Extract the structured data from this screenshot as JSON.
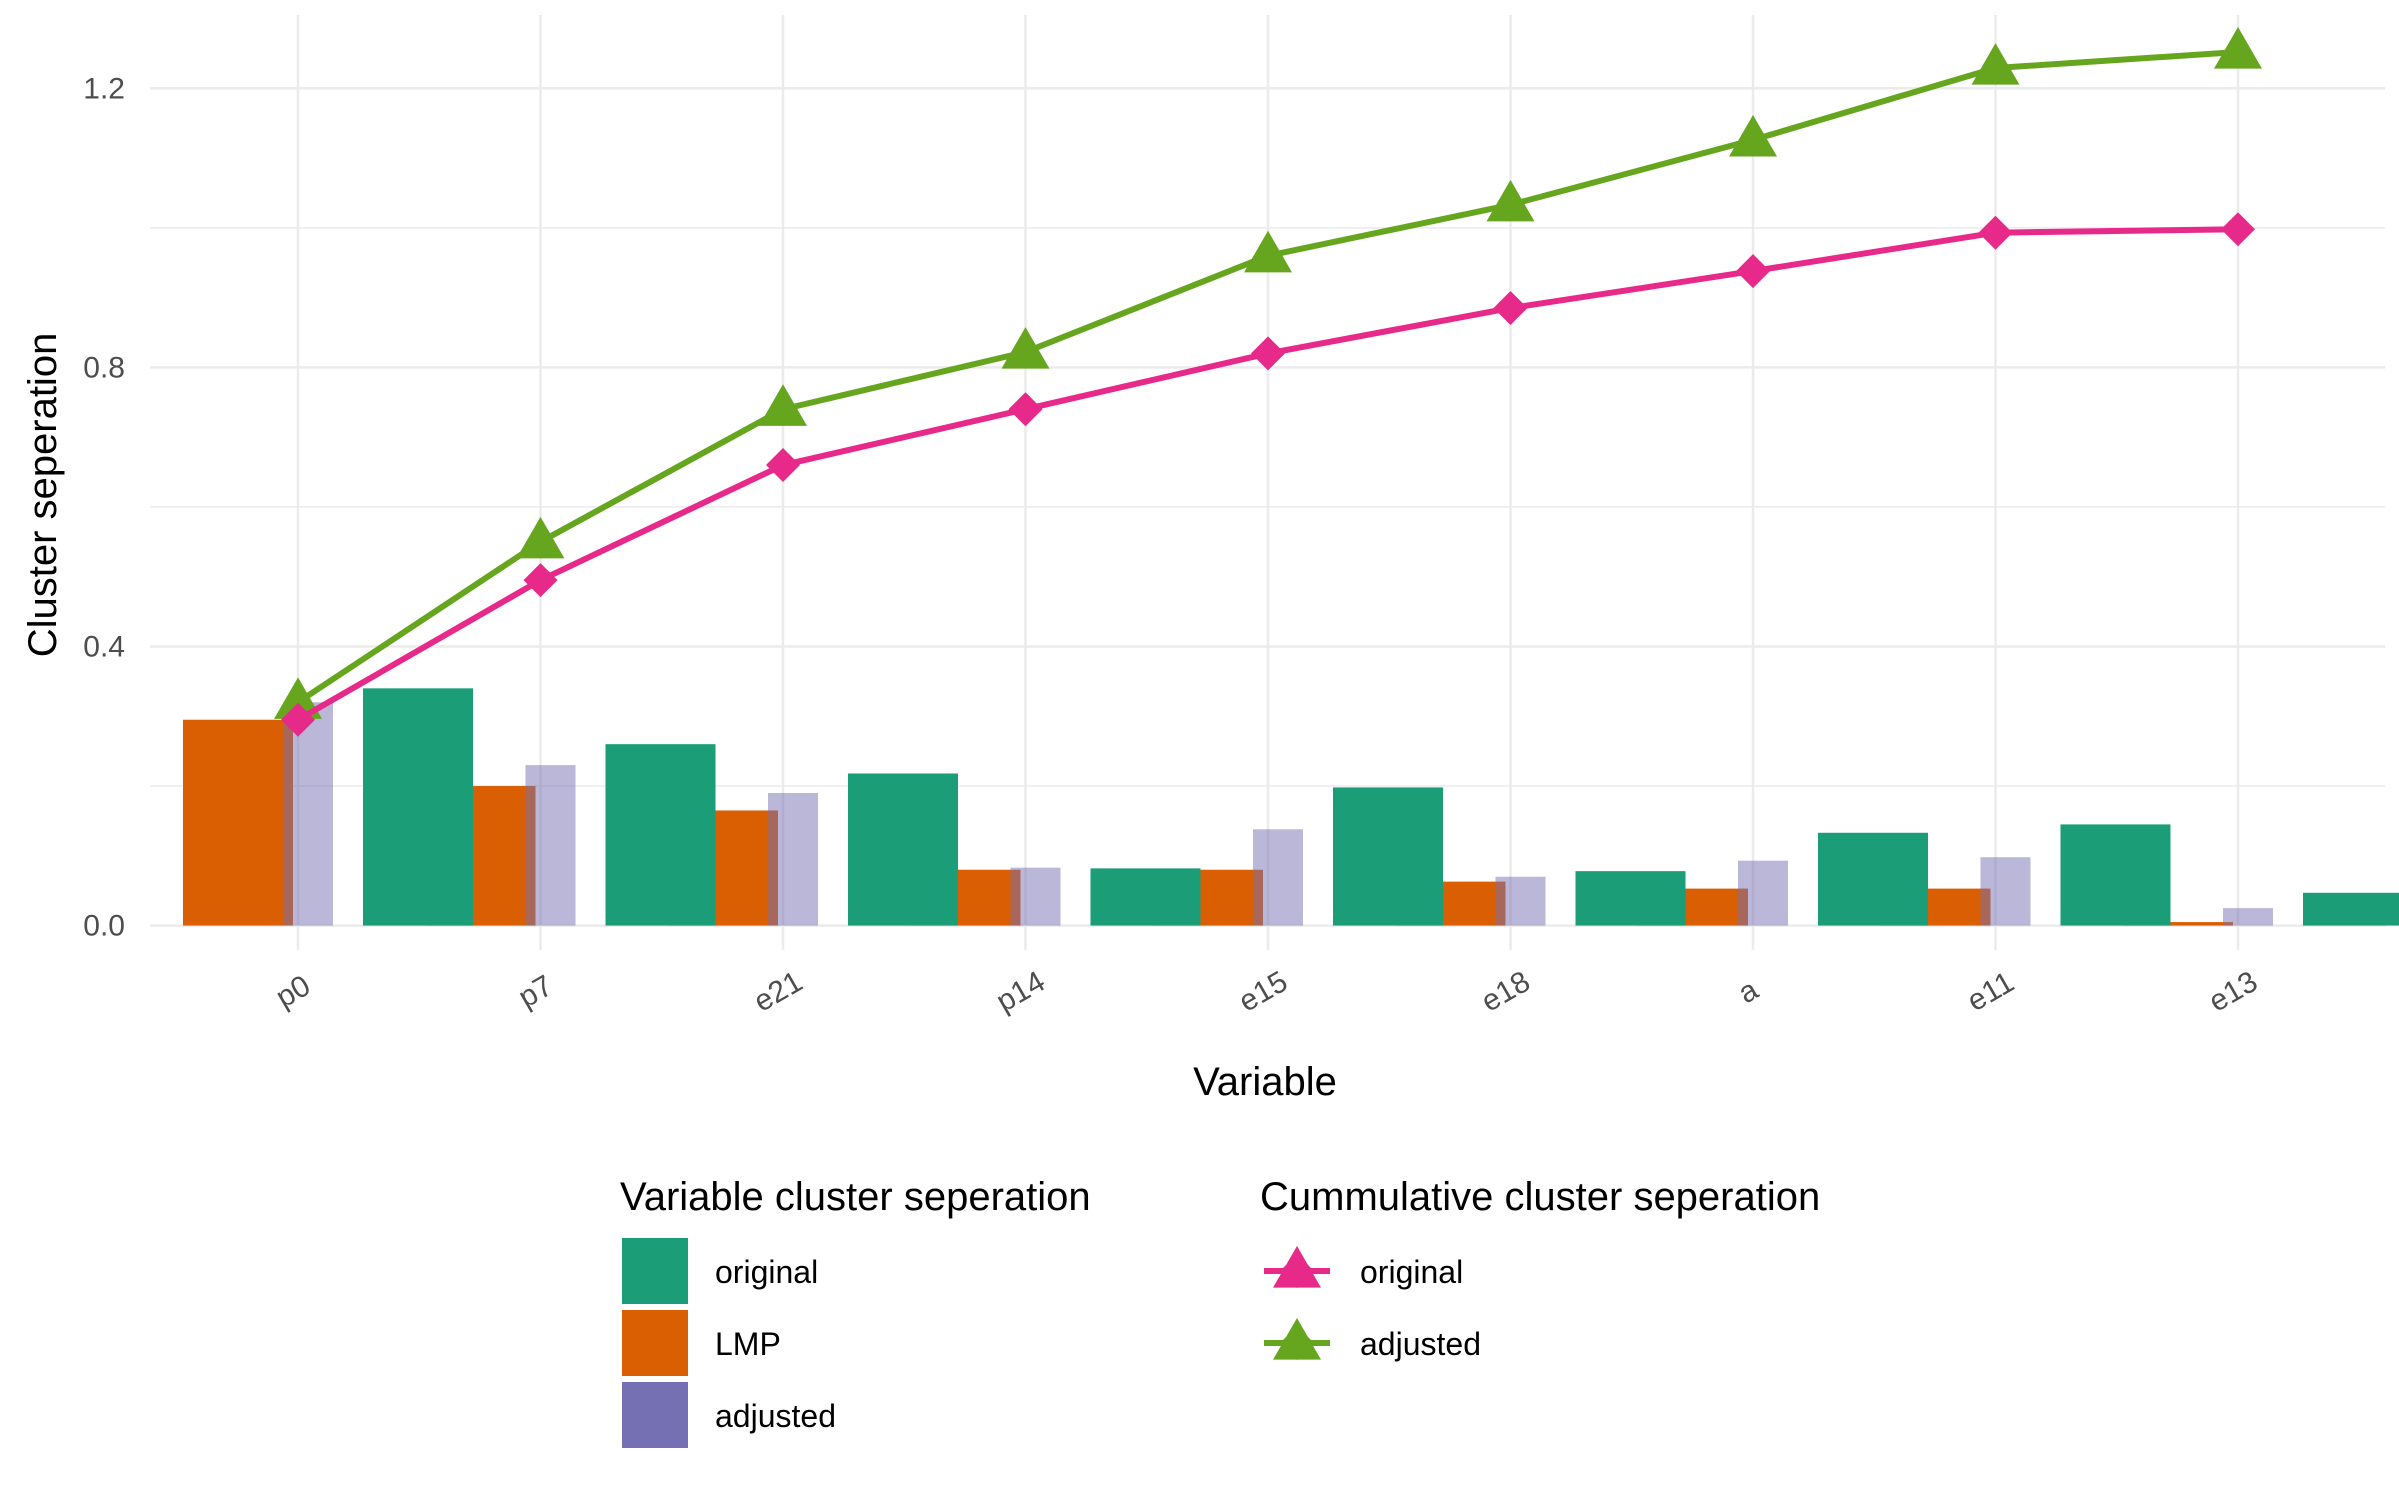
{
  "chart_data": {
    "type": "bar",
    "xlabel": "Variable",
    "ylabel": "Cluster seperation",
    "ylim": [
      -0.035,
      1.305
    ],
    "yticks": [
      "0.0",
      "0.4",
      "0.8",
      "1.2"
    ],
    "yticks_values": [
      0.0,
      0.4,
      0.8,
      1.2
    ],
    "grid": true,
    "categories": [
      "p0",
      "p7",
      "e21",
      "p14",
      "e15",
      "e18",
      "a",
      "e11",
      "e13"
    ],
    "bar_series": [
      {
        "name": "LMP",
        "color": "#D95F02",
        "values": [
          0.295,
          0.2,
          0.165,
          0.08,
          0.08,
          0.063,
          0.053,
          0.053,
          0.005
        ]
      },
      {
        "name": "adjusted",
        "color": "#7570B3",
        "opacity": 0.5,
        "values": [
          0.32,
          0.23,
          0.19,
          0.083,
          0.138,
          0.07,
          0.093,
          0.098,
          0.025
        ]
      },
      {
        "name": "original",
        "color": "#1B9E77",
        "values": [
          0.34,
          0.26,
          0.218,
          0.082,
          0.198,
          0.078,
          0.133,
          0.145,
          0.047
        ]
      }
    ],
    "line_series": [
      {
        "name": "original",
        "color": "#E7298A",
        "marker": "diamond",
        "values": [
          0.295,
          0.495,
          0.66,
          0.74,
          0.82,
          0.885,
          0.938,
          0.993,
          0.998
        ]
      },
      {
        "name": "adjusted",
        "color": "#66A61E",
        "marker": "triangle",
        "values": [
          0.32,
          0.55,
          0.74,
          0.822,
          0.96,
          1.033,
          1.126,
          1.229,
          1.252
        ]
      }
    ],
    "legend": {
      "placement": "bottom",
      "bars_title": "Variable cluster seperation",
      "bars_items": [
        {
          "label": "original",
          "color": "#1B9E77"
        },
        {
          "label": "LMP",
          "color": "#D95F02"
        },
        {
          "label": "adjusted",
          "color": "#7570B3"
        }
      ],
      "lines_title": "Cummulative cluster seperation",
      "lines_items": [
        {
          "label": "original",
          "color": "#E7298A"
        },
        {
          "label": "adjusted",
          "color": "#66A61E"
        }
      ]
    }
  }
}
